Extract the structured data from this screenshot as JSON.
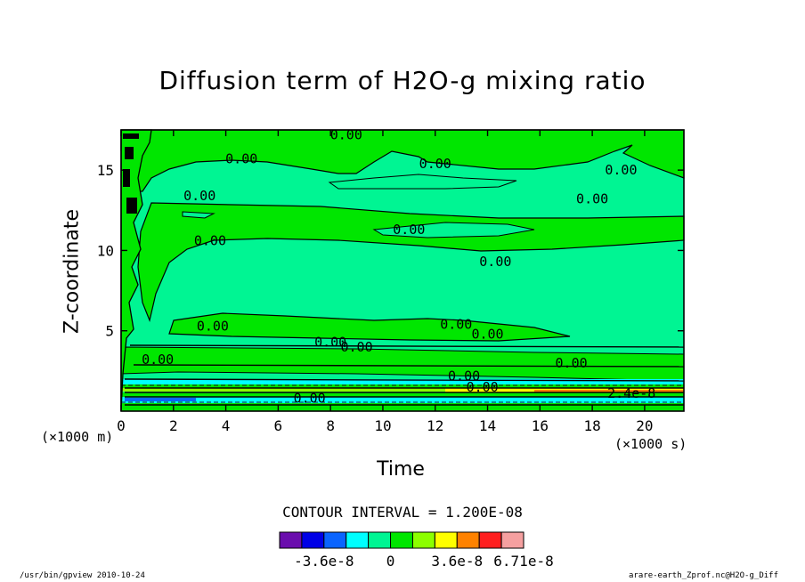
{
  "chart_data": {
    "type": "contour",
    "title": "Diffusion term of H2O-g mixing ratio",
    "xlabel": "Time",
    "ylabel": "Z-coordinate",
    "x_unit_label": "(×1000 s)",
    "y_unit_label": "(×1000 m)",
    "xlim": [
      0,
      21.5
    ],
    "ylim": [
      0,
      17.5
    ],
    "x_ticks": [
      0,
      2,
      4,
      6,
      8,
      10,
      12,
      14,
      16,
      18,
      20
    ],
    "y_ticks": [
      5,
      10,
      15
    ],
    "contour_interval_text": "CONTOUR INTERVAL = 1.200E-08",
    "colorbar": {
      "colors": [
        "#6a0dad",
        "#0000e6",
        "#0a64ff",
        "#00ffff",
        "#00f593",
        "#00e600",
        "#8cff00",
        "#ffff00",
        "#ff8200",
        "#ff1e1e",
        "#f5a0a0"
      ],
      "labels": [
        "-3.6e-8",
        "0",
        "3.6e-8",
        "6.71e-8"
      ]
    },
    "contour_labels": [
      {
        "text": "0.00",
        "x": 8.6,
        "y": 17.2
      },
      {
        "text": "0.00",
        "x": 4.6,
        "y": 15.7
      },
      {
        "text": "0.00",
        "x": 12.0,
        "y": 15.4
      },
      {
        "text": "0.00",
        "x": 19.1,
        "y": 15.0
      },
      {
        "text": "0.00",
        "x": 3.0,
        "y": 13.4
      },
      {
        "text": "0.00",
        "x": 18.0,
        "y": 13.2
      },
      {
        "text": "0.00",
        "x": 11.0,
        "y": 11.3
      },
      {
        "text": "0.00",
        "x": 3.4,
        "y": 10.6
      },
      {
        "text": "0.00",
        "x": 14.3,
        "y": 9.3
      },
      {
        "text": "0.00",
        "x": 3.5,
        "y": 5.3
      },
      {
        "text": "0.00",
        "x": 12.8,
        "y": 5.4
      },
      {
        "text": "0.00",
        "x": 14.0,
        "y": 4.8
      },
      {
        "text": "0.00",
        "x": 8.0,
        "y": 4.3
      },
      {
        "text": "0.00",
        "x": 9.0,
        "y": 4.0
      },
      {
        "text": "0.00",
        "x": 1.4,
        "y": 3.2
      },
      {
        "text": "0.00",
        "x": 17.2,
        "y": 3.0
      },
      {
        "text": "0.00",
        "x": 13.1,
        "y": 2.2
      },
      {
        "text": "0.00",
        "x": 13.8,
        "y": 1.5
      },
      {
        "text": "0.00",
        "x": 7.2,
        "y": 0.8
      },
      {
        "text": "2.4e-8",
        "x": 19.5,
        "y": 1.1
      }
    ]
  },
  "footer": {
    "left": "/usr/bin/gpview  2010-10-24",
    "right": "arare-earth_Zprof.nc@H2O-g_Diff"
  }
}
